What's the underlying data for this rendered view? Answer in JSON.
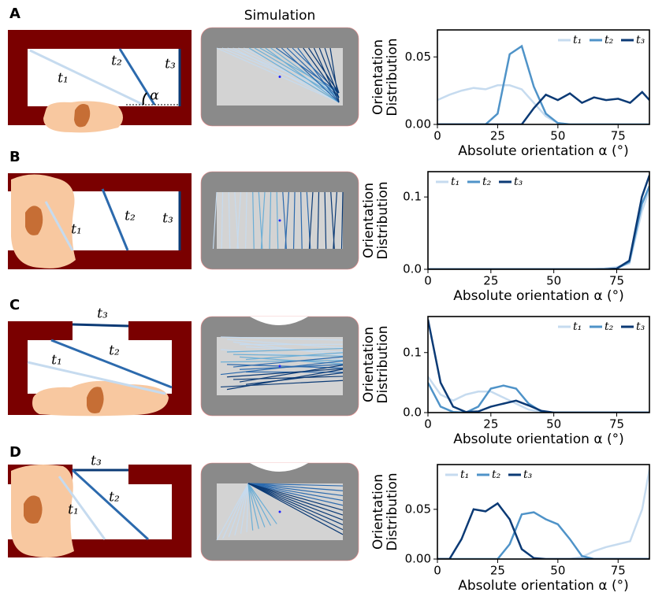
{
  "header": {
    "title": "Simulation"
  },
  "panels": [
    {
      "letter": "A",
      "labels": [
        "t₁",
        "t₂",
        "t₃",
        "α"
      ]
    },
    {
      "letter": "B",
      "labels": [
        "t₁",
        "t₂",
        "t₃"
      ]
    },
    {
      "letter": "C",
      "labels": [
        "t₁",
        "t₂",
        "t₃"
      ]
    },
    {
      "letter": "D",
      "labels": [
        "t₁",
        "t₂",
        "t₃"
      ]
    }
  ],
  "chart_data": [
    {
      "type": "line",
      "ylabel": [
        "Orientation",
        "Distribution"
      ],
      "xlabel": "Absolute orientation α (°)",
      "x": [
        0,
        5,
        10,
        15,
        20,
        25,
        30,
        35,
        40,
        45,
        50,
        55,
        60,
        65,
        70,
        75,
        80,
        85,
        88
      ],
      "xlim": [
        0,
        88
      ],
      "xticks": [
        0,
        25,
        50,
        75
      ],
      "ylim": [
        0,
        0.07
      ],
      "yticks": [
        {
          "value": 0,
          "label": "0.00"
        },
        {
          "value": 0.05,
          "label": "0.05"
        }
      ],
      "legend": "upper right",
      "series": [
        {
          "name": "t₁",
          "color": "#c6dbef",
          "values": [
            0.018,
            0.022,
            0.025,
            0.027,
            0.026,
            0.029,
            0.029,
            0.026,
            0.016,
            0.006,
            0.001,
            0,
            0,
            0,
            0,
            0,
            0,
            0,
            0
          ]
        },
        {
          "name": "t₂",
          "color": "#4f93c8",
          "values": [
            0,
            0,
            0,
            0,
            0,
            0.008,
            0.052,
            0.058,
            0.028,
            0.008,
            0.001,
            0,
            0,
            0,
            0,
            0,
            0,
            0,
            0
          ]
        },
        {
          "name": "t₃",
          "color": "#0b3a75",
          "values": [
            0,
            0,
            0,
            0,
            0,
            0,
            0,
            0,
            0.012,
            0.022,
            0.018,
            0.023,
            0.016,
            0.02,
            0.018,
            0.019,
            0.016,
            0.024,
            0.018
          ]
        }
      ]
    },
    {
      "type": "line",
      "ylabel": [
        "Orientation",
        "Distribution"
      ],
      "xlabel": "Absolute orientation α (°)",
      "x": [
        0,
        5,
        10,
        15,
        20,
        25,
        30,
        35,
        40,
        45,
        50,
        55,
        60,
        65,
        70,
        75,
        80,
        85,
        88
      ],
      "xlim": [
        0,
        88
      ],
      "xticks": [
        0,
        25,
        50,
        75
      ],
      "ylim": [
        0,
        0.135
      ],
      "yticks": [
        {
          "value": 0,
          "label": "0.0"
        },
        0.1
      ],
      "legend": "upper left",
      "series": [
        {
          "name": "t₁",
          "color": "#c6dbef",
          "values": [
            0,
            0,
            0,
            0,
            0,
            0,
            0,
            0,
            0,
            0,
            0,
            0,
            0,
            0,
            0.001,
            0.003,
            0.008,
            0.08,
            0.11
          ]
        },
        {
          "name": "t₂",
          "color": "#4f93c8",
          "values": [
            0,
            0,
            0,
            0,
            0,
            0,
            0,
            0,
            0,
            0,
            0,
            0,
            0,
            0,
            0,
            0.001,
            0.01,
            0.09,
            0.115
          ]
        },
        {
          "name": "t₃",
          "color": "#0b3a75",
          "values": [
            0,
            0,
            0,
            0,
            0,
            0,
            0,
            0,
            0,
            0,
            0,
            0,
            0,
            0,
            0,
            0.001,
            0.012,
            0.1,
            0.13
          ]
        }
      ]
    },
    {
      "type": "line",
      "ylabel": [
        "Orientation",
        "Distribution"
      ],
      "xlabel": "Absolute orientation α (°)",
      "x": [
        0,
        5,
        10,
        15,
        20,
        25,
        30,
        35,
        40,
        45,
        50,
        55,
        60,
        65,
        70,
        75,
        80,
        85,
        88
      ],
      "xlim": [
        0,
        88
      ],
      "xticks": [
        0,
        25,
        50,
        75
      ],
      "ylim": [
        0,
        0.16
      ],
      "yticks": [
        {
          "value": 0,
          "label": "0.0"
        },
        0.1
      ],
      "legend": "upper right",
      "series": [
        {
          "name": "t₁",
          "color": "#c6dbef",
          "values": [
            0.06,
            0.03,
            0.02,
            0.03,
            0.035,
            0.035,
            0.025,
            0.015,
            0.005,
            0.001,
            0,
            0,
            0,
            0,
            0,
            0,
            0,
            0,
            0
          ]
        },
        {
          "name": "t₂",
          "color": "#4f93c8",
          "values": [
            0.05,
            0.01,
            0.001,
            0,
            0.01,
            0.04,
            0.045,
            0.04,
            0.015,
            0.002,
            0,
            0,
            0,
            0,
            0,
            0,
            0,
            0,
            0
          ]
        },
        {
          "name": "t₃",
          "color": "#0b3a75",
          "values": [
            0.155,
            0.05,
            0.01,
            0.001,
            0.002,
            0.01,
            0.015,
            0.02,
            0.012,
            0.003,
            0,
            0,
            0,
            0,
            0,
            0,
            0,
            0,
            0
          ]
        }
      ]
    },
    {
      "type": "line",
      "ylabel": [
        "Orientation",
        "Distribution"
      ],
      "xlabel": "Absolute orientation α (°)",
      "x": [
        0,
        5,
        10,
        15,
        20,
        25,
        30,
        35,
        40,
        45,
        50,
        55,
        60,
        65,
        70,
        75,
        80,
        85,
        88
      ],
      "xlim": [
        0,
        88
      ],
      "xticks": [
        0,
        25,
        50,
        75
      ],
      "ylim": [
        0,
        0.095
      ],
      "yticks": [
        {
          "value": 0,
          "label": "0.00"
        },
        {
          "value": 0.05,
          "label": "0.05"
        }
      ],
      "legend": "upper left",
      "series": [
        {
          "name": "t₁",
          "color": "#c6dbef",
          "values": [
            0,
            0,
            0,
            0,
            0,
            0,
            0,
            0,
            0,
            0,
            0,
            0,
            0.002,
            0.008,
            0.012,
            0.015,
            0.018,
            0.05,
            0.09
          ]
        },
        {
          "name": "t₂",
          "color": "#4f93c8",
          "values": [
            0,
            0,
            0,
            0,
            0,
            0,
            0.015,
            0.045,
            0.047,
            0.04,
            0.035,
            0.02,
            0.003,
            0,
            0,
            0,
            0,
            0,
            0
          ]
        },
        {
          "name": "t₃",
          "color": "#0b3a75",
          "values": [
            0,
            0,
            0.02,
            0.05,
            0.048,
            0.056,
            0.04,
            0.01,
            0.001,
            0,
            0,
            0,
            0,
            0,
            0,
            0,
            0,
            0,
            0
          ]
        }
      ]
    }
  ]
}
